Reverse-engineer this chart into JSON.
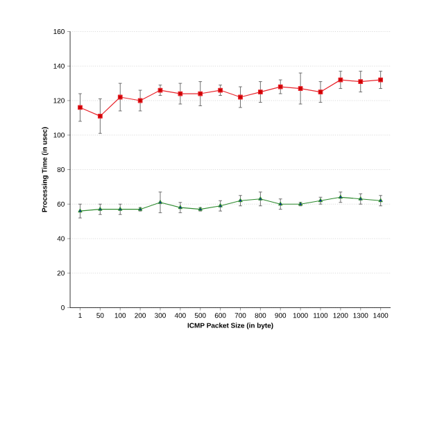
{
  "chart_data": {
    "type": "line",
    "xlabel": "ICMP Packet Size (in byte)",
    "ylabel": "Processing Time (in usec)",
    "categories": [
      "1",
      "50",
      "100",
      "200",
      "300",
      "400",
      "500",
      "600",
      "700",
      "800",
      "900",
      "1000",
      "1100",
      "1200",
      "1300",
      "1400"
    ],
    "series": [
      {
        "color": "#2e8b2e",
        "marker": "triangle",
        "values": [
          56,
          57,
          57,
          57,
          61,
          58,
          57,
          59,
          62,
          63,
          60,
          60,
          62,
          64,
          63,
          62
        ],
        "errors": [
          4,
          3,
          3,
          1,
          6,
          3,
          1,
          3,
          3,
          4,
          3,
          1,
          2,
          3,
          3,
          3
        ]
      },
      {
        "color": "#e8242c",
        "marker": "square",
        "values": [
          116,
          111,
          122,
          120,
          126,
          124,
          124,
          126,
          122,
          125,
          128,
          127,
          125,
          132,
          131,
          132
        ],
        "errors": [
          8,
          10,
          8,
          6,
          3,
          6,
          7,
          3,
          6,
          6,
          4,
          9,
          6,
          5,
          6,
          5
        ]
      }
    ],
    "ylim": [
      0,
      160
    ],
    "yticks": [
      0,
      20,
      40,
      60,
      80,
      100,
      120,
      140,
      160
    ],
    "grid": "y",
    "line_style": "solid"
  }
}
